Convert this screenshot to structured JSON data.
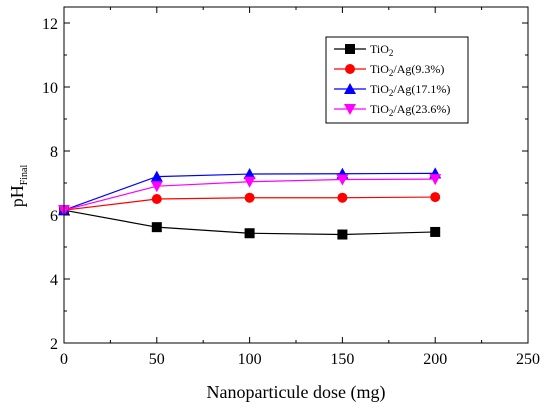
{
  "chart_data": {
    "type": "line",
    "title": "",
    "xlabel": "Nanoparticule dose (mg)",
    "ylabel": {
      "main": "pH",
      "sub": "Final"
    },
    "xlim": [
      0,
      250
    ],
    "ylim": [
      2,
      12.5
    ],
    "x_ticks": [
      "0",
      "50",
      "100",
      "150",
      "200",
      "250"
    ],
    "y_ticks": [
      "2",
      "4",
      "6",
      "8",
      "10",
      "12"
    ],
    "grid": false,
    "legend_position": "top-right",
    "x": [
      0,
      50,
      100,
      150,
      200
    ],
    "series": [
      {
        "name": "TiO2",
        "label_main": "TiO",
        "label_sub": "2",
        "label_tail": "",
        "color": "#000000",
        "marker": "square",
        "values": [
          6.15,
          5.62,
          5.43,
          5.39,
          5.47
        ]
      },
      {
        "name": "TiO2/Ag(9.3%)",
        "label_main": "TiO",
        "label_sub": "2",
        "label_tail": "/Ag(9.3%)",
        "color": "#ff0000",
        "marker": "circle",
        "values": [
          6.15,
          6.5,
          6.54,
          6.54,
          6.56
        ]
      },
      {
        "name": "TiO2/Ag(17.1%)",
        "label_main": "TiO",
        "label_sub": "2",
        "label_tail": "/Ag(17.1%)",
        "color": "#0000ff",
        "marker": "triangle-up",
        "values": [
          6.15,
          7.2,
          7.28,
          7.29,
          7.3
        ]
      },
      {
        "name": "TiO2/Ag(23.6%)",
        "label_main": "TiO",
        "label_sub": "2",
        "label_tail": "/Ag(23.6%)",
        "color": "#ff00ff",
        "marker": "triangle-down",
        "values": [
          6.15,
          6.9,
          7.04,
          7.11,
          7.12
        ]
      }
    ]
  }
}
